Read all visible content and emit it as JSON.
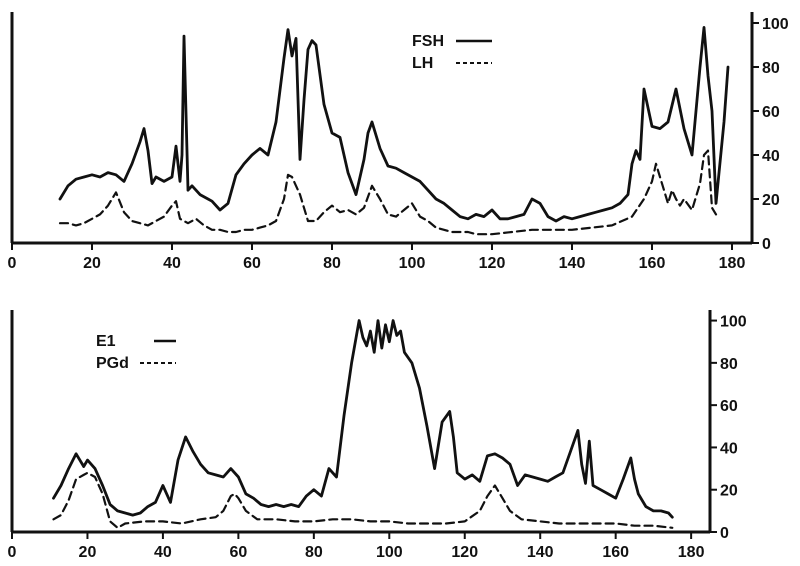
{
  "colors": {
    "ink": "#111111",
    "background": "#ffffff"
  },
  "chart_data": [
    {
      "type": "line",
      "title": "",
      "xlabel": "",
      "ylabel": "",
      "xlim": [
        0,
        185
      ],
      "ylim": [
        0,
        105
      ],
      "x_ticks": [
        0,
        20,
        40,
        60,
        80,
        100,
        120,
        140,
        160,
        180
      ],
      "y_ticks": [
        0,
        20,
        40,
        60,
        80,
        100
      ],
      "y_axis_side": "right",
      "legend": {
        "placement": "top-center",
        "entries": [
          {
            "label": "FSH",
            "style": "solid"
          },
          {
            "label": "LH",
            "style": "dashed"
          }
        ]
      },
      "series": [
        {
          "name": "FSH",
          "style": "solid",
          "x": [
            12,
            14,
            16,
            18,
            20,
            22,
            24,
            26,
            28,
            30,
            32,
            33,
            34,
            35,
            36,
            38,
            40,
            41,
            42,
            42.5,
            43,
            44,
            45,
            47,
            49,
            50,
            52,
            54,
            56,
            58,
            60,
            62,
            64,
            66,
            68,
            69,
            70,
            71,
            72,
            73,
            74,
            75,
            76,
            78,
            80,
            82,
            84,
            86,
            88,
            89,
            90,
            92,
            94,
            96,
            98,
            100,
            102,
            104,
            106,
            108,
            110,
            112,
            114,
            116,
            118,
            120,
            122,
            124,
            126,
            128,
            130,
            132,
            134,
            136,
            138,
            140,
            142,
            144,
            146,
            148,
            150,
            152,
            154,
            155,
            156,
            157,
            158,
            160,
            162,
            164,
            166,
            168,
            170,
            172,
            173,
            174,
            175,
            176,
            178,
            179
          ],
          "y": [
            20,
            26,
            29,
            30,
            31,
            30,
            32,
            31,
            28,
            36,
            46,
            52,
            42,
            27,
            30,
            28,
            30,
            44,
            28,
            40,
            94,
            24,
            26,
            22,
            20,
            19,
            15,
            18,
            31,
            36,
            40,
            43,
            40,
            55,
            84,
            97,
            85,
            93,
            38,
            65,
            88,
            92,
            90,
            63,
            50,
            48,
            32,
            22,
            38,
            50,
            55,
            43,
            35,
            34,
            32,
            30,
            28,
            24,
            20,
            18,
            15,
            12,
            11,
            13,
            12,
            15,
            11,
            11,
            12,
            13,
            20,
            18,
            12,
            10,
            12,
            11,
            12,
            13,
            14,
            15,
            16,
            18,
            22,
            36,
            42,
            38,
            70,
            53,
            52,
            55,
            70,
            52,
            40,
            80,
            98,
            76,
            60,
            18,
            55,
            80
          ]
        },
        {
          "name": "LH",
          "style": "dashed",
          "x": [
            12,
            14,
            16,
            18,
            20,
            22,
            24,
            26,
            28,
            30,
            32,
            34,
            36,
            38,
            40,
            41,
            42,
            44,
            46,
            48,
            50,
            52,
            54,
            56,
            58,
            60,
            62,
            64,
            66,
            68,
            69,
            70,
            72,
            74,
            76,
            78,
            80,
            82,
            84,
            86,
            88,
            90,
            92,
            94,
            96,
            98,
            100,
            102,
            104,
            106,
            108,
            110,
            112,
            114,
            116,
            118,
            120,
            125,
            130,
            135,
            140,
            145,
            150,
            155,
            158,
            160,
            161,
            162,
            164,
            165,
            166,
            167,
            168,
            170,
            172,
            173,
            174,
            175,
            176
          ],
          "y": [
            9,
            9,
            8,
            9,
            11,
            13,
            17,
            23,
            14,
            10,
            9,
            8,
            10,
            12,
            17,
            19,
            11,
            9,
            11,
            8,
            6,
            6,
            5,
            5,
            6,
            6,
            7,
            8,
            10,
            20,
            31,
            30,
            22,
            10,
            10,
            14,
            17,
            14,
            15,
            13,
            16,
            26,
            20,
            13,
            12,
            15,
            18,
            12,
            10,
            7,
            6,
            5,
            5,
            5,
            4,
            4,
            4,
            5,
            6,
            6,
            6,
            7,
            8,
            12,
            20,
            28,
            36,
            30,
            18,
            24,
            20,
            17,
            20,
            15,
            27,
            40,
            42,
            16,
            13
          ]
        }
      ]
    },
    {
      "type": "line",
      "title": "",
      "xlabel": "",
      "ylabel": "",
      "xlim": [
        0,
        185
      ],
      "ylim": [
        0,
        105
      ],
      "x_ticks": [
        0,
        20,
        40,
        60,
        80,
        100,
        120,
        140,
        160,
        180
      ],
      "y_ticks": [
        0,
        20,
        40,
        60,
        80,
        100
      ],
      "y_axis_side": "right",
      "legend": {
        "placement": "top-left",
        "entries": [
          {
            "label": "E1",
            "style": "solid"
          },
          {
            "label": "PGd",
            "style": "dashed"
          }
        ]
      },
      "series": [
        {
          "name": "E1",
          "style": "solid",
          "x": [
            11,
            13,
            15,
            17,
            19,
            20,
            22,
            24,
            26,
            28,
            30,
            32,
            34,
            36,
            38,
            40,
            42,
            44,
            46,
            48,
            50,
            52,
            54,
            56,
            58,
            60,
            62,
            64,
            66,
            68,
            70,
            72,
            74,
            76,
            78,
            80,
            82,
            84,
            86,
            88,
            90,
            92,
            93,
            94,
            95,
            96,
            97,
            98,
            99,
            100,
            101,
            102,
            103,
            104,
            106,
            108,
            110,
            112,
            114,
            116,
            117,
            118,
            120,
            122,
            124,
            126,
            128,
            130,
            132,
            134,
            136,
            138,
            140,
            142,
            144,
            146,
            148,
            150,
            151,
            152,
            153,
            154,
            156,
            158,
            160,
            162,
            164,
            165,
            166,
            168,
            170,
            172,
            174,
            175
          ],
          "y": [
            16,
            22,
            30,
            37,
            31,
            34,
            30,
            22,
            13,
            10,
            9,
            8,
            9,
            12,
            14,
            22,
            14,
            34,
            45,
            38,
            32,
            28,
            27,
            26,
            30,
            26,
            18,
            16,
            13,
            12,
            13,
            12,
            13,
            12,
            17,
            20,
            17,
            30,
            26,
            55,
            80,
            100,
            92,
            88,
            95,
            85,
            100,
            87,
            98,
            90,
            100,
            93,
            95,
            85,
            80,
            68,
            50,
            30,
            52,
            57,
            45,
            28,
            25,
            27,
            24,
            36,
            37,
            35,
            32,
            22,
            27,
            26,
            25,
            24,
            26,
            28,
            38,
            48,
            32,
            23,
            43,
            22,
            20,
            18,
            16,
            25,
            35,
            25,
            18,
            12,
            10,
            10,
            9,
            7
          ]
        },
        {
          "name": "PGd",
          "style": "dashed",
          "x": [
            11,
            13,
            15,
            17,
            19,
            20,
            21,
            22,
            24,
            26,
            28,
            30,
            35,
            40,
            45,
            50,
            54,
            56,
            58,
            59,
            60,
            62,
            65,
            70,
            75,
            80,
            85,
            90,
            95,
            100,
            105,
            110,
            115,
            120,
            124,
            126,
            128,
            130,
            132,
            135,
            140,
            145,
            150,
            155,
            160,
            165,
            170,
            175
          ],
          "y": [
            6,
            8,
            15,
            25,
            27,
            28,
            27,
            26,
            18,
            5,
            2,
            4,
            5,
            5,
            4,
            6,
            7,
            10,
            17,
            18,
            16,
            10,
            6,
            6,
            5,
            5,
            6,
            6,
            5,
            5,
            4,
            4,
            4,
            5,
            10,
            17,
            22,
            16,
            10,
            6,
            5,
            4,
            4,
            4,
            4,
            3,
            3,
            2
          ]
        }
      ]
    }
  ]
}
